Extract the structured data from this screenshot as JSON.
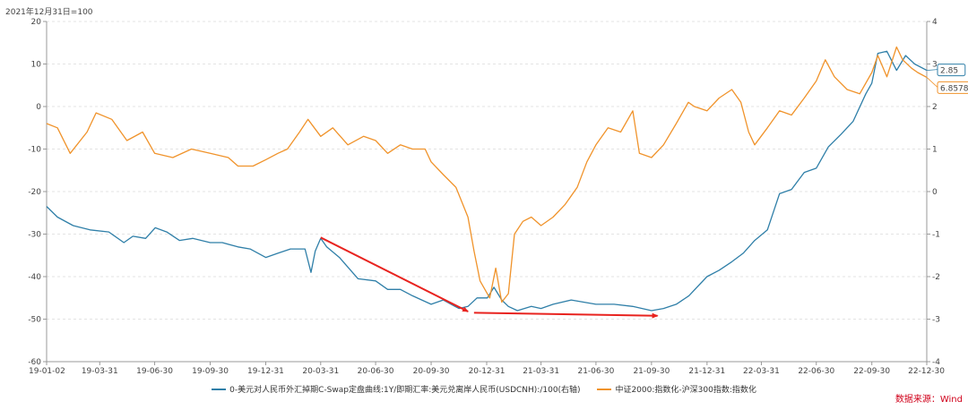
{
  "note": "2021年12月31日=100",
  "source": "数据来源：Wind",
  "chart_data": {
    "type": "line",
    "title": "",
    "xlabel": "",
    "ylabel": "",
    "x_ticks": [
      "19-01-02",
      "19-03-31",
      "19-06-30",
      "19-09-30",
      "19-12-31",
      "20-03-31",
      "20-06-30",
      "20-09-30",
      "20-12-31",
      "21-03-31",
      "21-06-30",
      "21-09-30",
      "21-12-31",
      "22-03-31",
      "22-06-30",
      "22-09-30",
      "22-12-30"
    ],
    "y_left": {
      "ticks": [
        20,
        10,
        0,
        -10,
        -20,
        -30,
        -40,
        -50,
        -60
      ],
      "range": [
        -60,
        20
      ]
    },
    "y_right": {
      "ticks": [
        4,
        3,
        2,
        1,
        0,
        -1,
        -2,
        -3,
        -4
      ],
      "range": [
        -4,
        4
      ]
    },
    "grid": true,
    "legend_position": "bottom",
    "series": [
      {
        "name": "0-美元对人民币外汇掉期C-Swap定盘曲线:1Y/即期汇率:美元兑离岸人民币(USDCNH):/100(右轴)",
        "color": "#2f7fa8",
        "axis": "right",
        "end_label": "2.85",
        "points": [
          [
            "19-01-02",
            -0.35
          ],
          [
            "19-01-20",
            -0.6
          ],
          [
            "19-02-15",
            -0.8
          ],
          [
            "19-03-15",
            -0.9
          ],
          [
            "19-04-15",
            -0.95
          ],
          [
            "19-05-10",
            -1.2
          ],
          [
            "19-05-25",
            -1.05
          ],
          [
            "19-06-15",
            -1.1
          ],
          [
            "19-07-01",
            -0.85
          ],
          [
            "19-07-20",
            -0.95
          ],
          [
            "19-08-10",
            -1.15
          ],
          [
            "19-09-01",
            -1.1
          ],
          [
            "19-09-30",
            -1.2
          ],
          [
            "19-10-20",
            -1.2
          ],
          [
            "19-11-15",
            -1.3
          ],
          [
            "19-12-05",
            -1.35
          ],
          [
            "19-12-31",
            -1.55
          ],
          [
            "20-01-20",
            -1.45
          ],
          [
            "20-02-10",
            -1.35
          ],
          [
            "20-02-25",
            -1.35
          ],
          [
            "20-03-05",
            -1.35
          ],
          [
            "20-03-15",
            -1.9
          ],
          [
            "20-03-22",
            -1.4
          ],
          [
            "20-03-31",
            -1.1
          ],
          [
            "20-04-10",
            -1.3
          ],
          [
            "20-05-01",
            -1.55
          ],
          [
            "20-06-01",
            -2.05
          ],
          [
            "20-06-30",
            -2.1
          ],
          [
            "20-07-20",
            -2.3
          ],
          [
            "20-08-10",
            -2.3
          ],
          [
            "20-08-30",
            -2.45
          ],
          [
            "20-09-30",
            -2.65
          ],
          [
            "20-10-20",
            -2.55
          ],
          [
            "20-11-15",
            -2.75
          ],
          [
            "20-11-30",
            -2.7
          ],
          [
            "20-12-15",
            -2.5
          ],
          [
            "21-01-01",
            -2.5
          ],
          [
            "21-01-12",
            -2.25
          ],
          [
            "21-01-25",
            -2.55
          ],
          [
            "21-02-05",
            -2.7
          ],
          [
            "21-02-20",
            -2.8
          ],
          [
            "21-03-15",
            -2.7
          ],
          [
            "21-03-31",
            -2.75
          ],
          [
            "21-04-20",
            -2.65
          ],
          [
            "21-05-20",
            -2.55
          ],
          [
            "21-06-30",
            -2.65
          ],
          [
            "21-07-30",
            -2.65
          ],
          [
            "21-08-30",
            -2.7
          ],
          [
            "21-09-30",
            -2.8
          ],
          [
            "21-10-20",
            -2.75
          ],
          [
            "21-11-10",
            -2.65
          ],
          [
            "21-12-01",
            -2.45
          ],
          [
            "21-12-31",
            -2.0
          ],
          [
            "22-01-20",
            -1.85
          ],
          [
            "22-02-10",
            -1.65
          ],
          [
            "22-03-01",
            -1.45
          ],
          [
            "22-03-20",
            -1.15
          ],
          [
            "22-04-10",
            -0.9
          ],
          [
            "22-04-30",
            -0.05
          ],
          [
            "22-05-20",
            0.05
          ],
          [
            "22-06-10",
            0.45
          ],
          [
            "22-06-30",
            0.55
          ],
          [
            "22-07-20",
            1.05
          ],
          [
            "22-08-10",
            1.35
          ],
          [
            "22-08-30",
            1.65
          ],
          [
            "22-09-20",
            2.3
          ],
          [
            "22-09-30",
            2.55
          ],
          [
            "22-10-10",
            3.25
          ],
          [
            "22-10-25",
            3.3
          ],
          [
            "22-11-10",
            2.85
          ],
          [
            "22-11-25",
            3.2
          ],
          [
            "22-12-10",
            3.0
          ],
          [
            "22-12-30",
            2.85
          ]
        ]
      },
      {
        "name": "中证2000:指数化-沪深300指数:指数化",
        "color": "#f0932b",
        "axis": "left",
        "end_label": "6.8578",
        "points": [
          [
            "19-01-02",
            -4
          ],
          [
            "19-01-20",
            -5
          ],
          [
            "19-02-10",
            -11
          ],
          [
            "19-03-10",
            -6
          ],
          [
            "19-03-25",
            -1.5
          ],
          [
            "19-04-20",
            -3
          ],
          [
            "19-05-15",
            -8
          ],
          [
            "19-06-10",
            -6
          ],
          [
            "19-06-30",
            -11
          ],
          [
            "19-07-30",
            -12
          ],
          [
            "19-08-30",
            -10
          ],
          [
            "19-09-30",
            -11
          ],
          [
            "19-10-30",
            -12
          ],
          [
            "19-11-15",
            -14
          ],
          [
            "19-12-10",
            -14
          ],
          [
            "19-12-31",
            -12.5
          ],
          [
            "20-01-20",
            -11
          ],
          [
            "20-02-05",
            -10
          ],
          [
            "20-02-25",
            -6
          ],
          [
            "20-03-10",
            -3
          ],
          [
            "20-03-31",
            -7
          ],
          [
            "20-04-20",
            -5
          ],
          [
            "20-05-15",
            -9
          ],
          [
            "20-06-10",
            -7
          ],
          [
            "20-06-30",
            -8
          ],
          [
            "20-07-20",
            -11
          ],
          [
            "20-08-10",
            -9
          ],
          [
            "20-08-30",
            -10
          ],
          [
            "20-09-20",
            -10
          ],
          [
            "20-09-30",
            -13
          ],
          [
            "20-10-20",
            -16
          ],
          [
            "20-11-10",
            -19
          ],
          [
            "20-11-30",
            -26
          ],
          [
            "20-12-10",
            -34
          ],
          [
            "20-12-20",
            -41
          ],
          [
            "21-01-05",
            -45
          ],
          [
            "21-01-15",
            -38
          ],
          [
            "21-01-25",
            -46
          ],
          [
            "21-02-05",
            -44
          ],
          [
            "21-02-15",
            -30
          ],
          [
            "21-03-01",
            -27
          ],
          [
            "21-03-15",
            -26
          ],
          [
            "21-03-31",
            -28
          ],
          [
            "21-04-20",
            -26
          ],
          [
            "21-05-10",
            -23
          ],
          [
            "21-05-30",
            -19
          ],
          [
            "21-06-15",
            -13
          ],
          [
            "21-06-30",
            -9
          ],
          [
            "21-07-20",
            -5
          ],
          [
            "21-08-10",
            -6
          ],
          [
            "21-08-30",
            -1
          ],
          [
            "21-09-10",
            -11
          ],
          [
            "21-09-30",
            -12
          ],
          [
            "21-10-20",
            -9
          ],
          [
            "21-11-10",
            -4
          ],
          [
            "21-11-30",
            1
          ],
          [
            "21-12-10",
            0
          ],
          [
            "21-12-31",
            -1
          ],
          [
            "22-01-20",
            2
          ],
          [
            "22-02-10",
            4
          ],
          [
            "22-02-25",
            1
          ],
          [
            "22-03-10",
            -6
          ],
          [
            "22-03-20",
            -9
          ],
          [
            "22-04-10",
            -5
          ],
          [
            "22-04-30",
            -1
          ],
          [
            "22-05-20",
            -2
          ],
          [
            "22-06-10",
            2
          ],
          [
            "22-06-30",
            6
          ],
          [
            "22-07-15",
            11
          ],
          [
            "22-07-30",
            7
          ],
          [
            "22-08-20",
            4
          ],
          [
            "22-09-10",
            3
          ],
          [
            "22-09-30",
            8
          ],
          [
            "22-10-10",
            12
          ],
          [
            "22-10-25",
            7
          ],
          [
            "22-11-10",
            14
          ],
          [
            "22-11-20",
            11
          ],
          [
            "22-12-05",
            9
          ],
          [
            "22-12-15",
            8
          ],
          [
            "22-12-30",
            6.86
          ]
        ]
      }
    ],
    "annotations": [
      {
        "type": "arrow",
        "color": "#e8231f",
        "from": [
          "20-03-31",
          -30.8
        ],
        "to": [
          "20-11-30",
          -48.2
        ]
      },
      {
        "type": "arrow",
        "color": "#e8231f",
        "from": [
          "20-12-10",
          -48.5
        ],
        "to": [
          "21-10-10",
          -49.2
        ]
      }
    ]
  }
}
